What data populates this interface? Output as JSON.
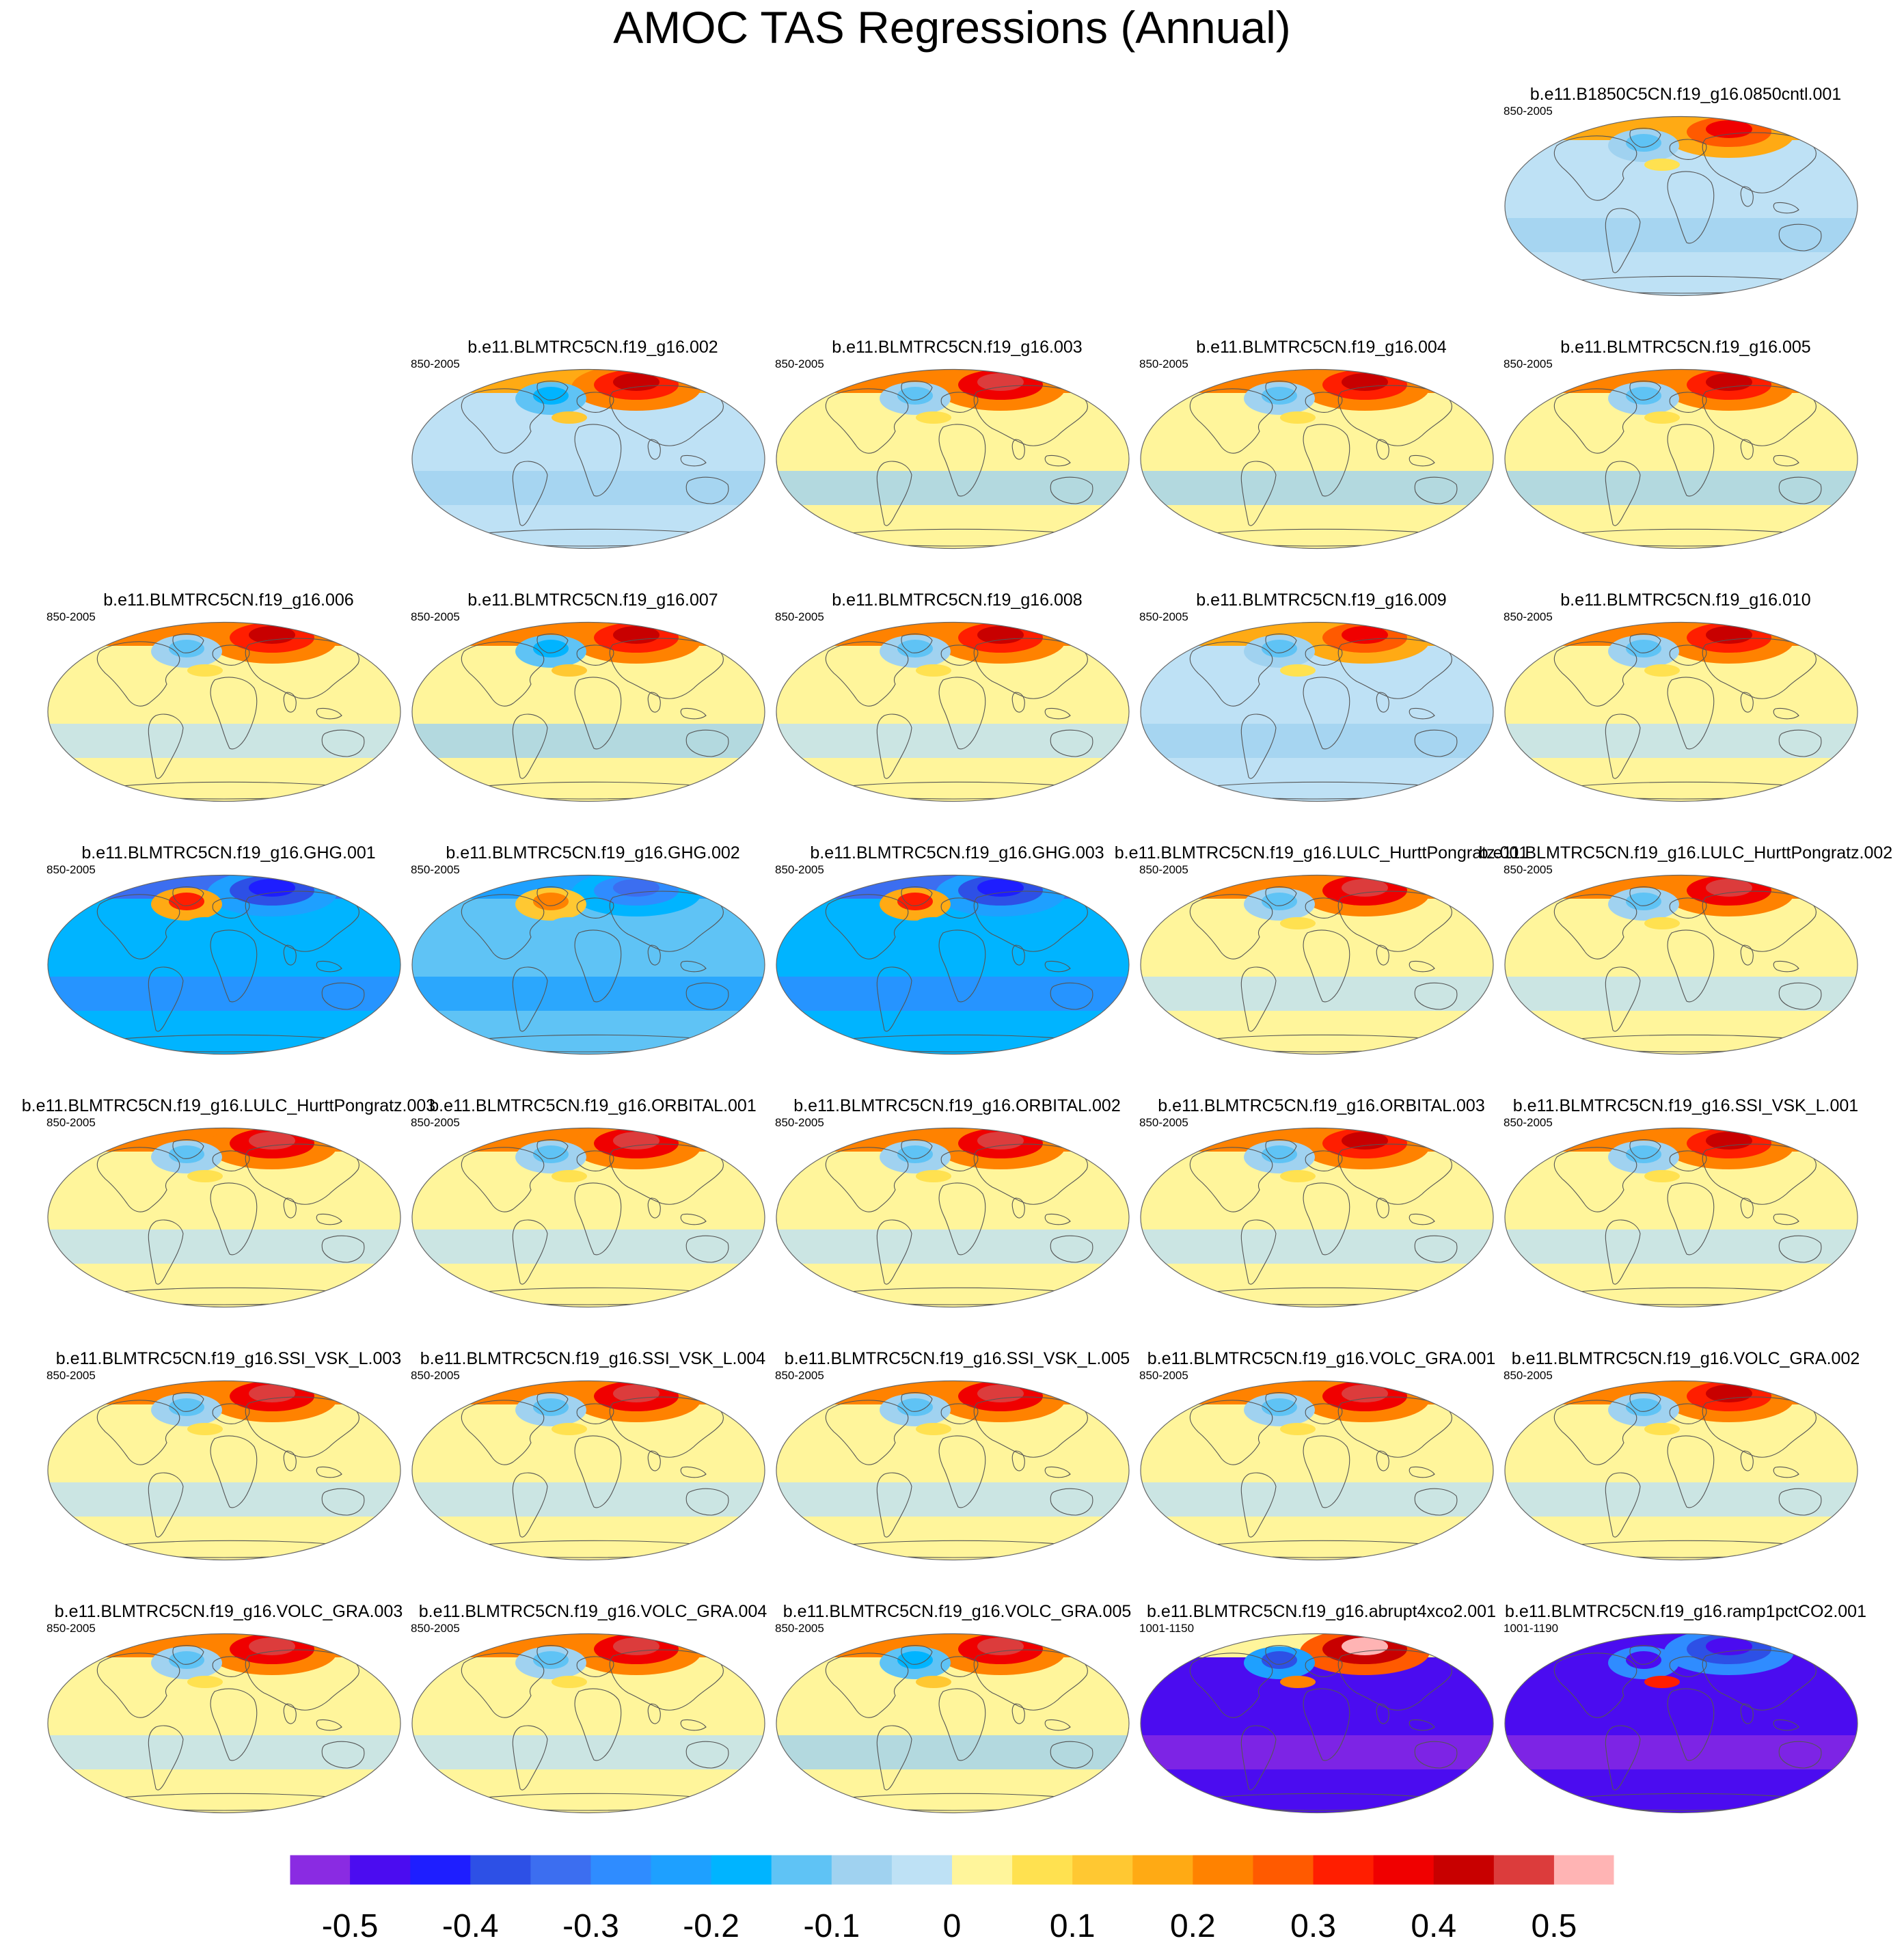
{
  "chart_data": {
    "type": "heatmap",
    "title": "AMOC TAS Regressions (Annual)",
    "projection": "global map (Robinson-like)",
    "colorbar": {
      "levels": [
        -0.5,
        -0.45,
        -0.4,
        -0.35,
        -0.3,
        -0.25,
        -0.2,
        -0.15,
        -0.1,
        -0.05,
        0,
        0.05,
        0.1,
        0.15,
        0.2,
        0.25,
        0.3,
        0.35,
        0.4,
        0.45,
        0.5
      ],
      "tick_labels": [
        "-0.5",
        "-0.4",
        "-0.3",
        "-0.2",
        "-0.1",
        "0",
        "0.1",
        "0.2",
        "0.3",
        "0.4",
        "0.5"
      ],
      "colors": [
        "#8a2be2",
        "#4b0cf0",
        "#1e1eff",
        "#2d50e6",
        "#3c6ef0",
        "#2f8cff",
        "#1ea0ff",
        "#00b4ff",
        "#5fc3f5",
        "#a0d2f0",
        "#bee1f5",
        "#fff59b",
        "#ffe150",
        "#ffc832",
        "#ffaa14",
        "#ff8200",
        "#ff5a00",
        "#ff1e00",
        "#f00000",
        "#c80000",
        "#dc3c3c",
        "#ffb4b4"
      ]
    },
    "panels": [
      {
        "title": "b.e11.B1850C5CN.f19_g16.0850cntl.001",
        "period": "850-2005",
        "mean_anomaly": -0.02,
        "arctic_anomaly": 0.35,
        "na_anomaly": -0.15
      },
      {
        "title": "b.e11.BLMTRC5CN.f19_g16.002",
        "period": "850-2005",
        "mean_anomaly": -0.02,
        "arctic_anomaly": 0.4,
        "na_anomaly": -0.2
      },
      {
        "title": "b.e11.BLMTRC5CN.f19_g16.003",
        "period": "850-2005",
        "mean_anomaly": 0.0,
        "arctic_anomaly": 0.45,
        "na_anomaly": -0.15
      },
      {
        "title": "b.e11.BLMTRC5CN.f19_g16.004",
        "period": "850-2005",
        "mean_anomaly": 0.0,
        "arctic_anomaly": 0.4,
        "na_anomaly": -0.15
      },
      {
        "title": "b.e11.BLMTRC5CN.f19_g16.005",
        "period": "850-2005",
        "mean_anomaly": 0.0,
        "arctic_anomaly": 0.4,
        "na_anomaly": -0.15
      },
      {
        "title": "b.e11.BLMTRC5CN.f19_g16.006",
        "period": "850-2005",
        "mean_anomaly": 0.02,
        "arctic_anomaly": 0.4,
        "na_anomaly": -0.15
      },
      {
        "title": "b.e11.BLMTRC5CN.f19_g16.007",
        "period": "850-2005",
        "mean_anomaly": 0.0,
        "arctic_anomaly": 0.4,
        "na_anomaly": -0.2
      },
      {
        "title": "b.e11.BLMTRC5CN.f19_g16.008",
        "period": "850-2005",
        "mean_anomaly": 0.02,
        "arctic_anomaly": 0.4,
        "na_anomaly": -0.15
      },
      {
        "title": "b.e11.BLMTRC5CN.f19_g16.009",
        "period": "850-2005",
        "mean_anomaly": -0.02,
        "arctic_anomaly": 0.35,
        "na_anomaly": -0.15
      },
      {
        "title": "b.e11.BLMTRC5CN.f19_g16.010",
        "period": "850-2005",
        "mean_anomaly": 0.02,
        "arctic_anomaly": 0.4,
        "na_anomaly": -0.15
      },
      {
        "title": "b.e11.BLMTRC5CN.f19_g16.GHG.001",
        "period": "850-2005",
        "mean_anomaly": -0.2,
        "arctic_anomaly": -0.45,
        "na_anomaly": 0.3
      },
      {
        "title": "b.e11.BLMTRC5CN.f19_g16.GHG.002",
        "period": "850-2005",
        "mean_anomaly": -0.15,
        "arctic_anomaly": -0.35,
        "na_anomaly": 0.2
      },
      {
        "title": "b.e11.BLMTRC5CN.f19_g16.GHG.003",
        "period": "850-2005",
        "mean_anomaly": -0.2,
        "arctic_anomaly": -0.45,
        "na_anomaly": 0.3
      },
      {
        "title": "b.e11.BLMTRC5CN.f19_g16.LULC_HurttPongratz.001",
        "period": "850-2005",
        "mean_anomaly": 0.02,
        "arctic_anomaly": 0.45,
        "na_anomaly": -0.15
      },
      {
        "title": "b.e11.BLMTRC5CN.f19_g16.LULC_HurttPongratz.002",
        "period": "850-2005",
        "mean_anomaly": 0.02,
        "arctic_anomaly": 0.45,
        "na_anomaly": -0.15
      },
      {
        "title": "b.e11.BLMTRC5CN.f19_g16.LULC_HurttPongratz.003",
        "period": "850-2005",
        "mean_anomaly": 0.02,
        "arctic_anomaly": 0.45,
        "na_anomaly": -0.15
      },
      {
        "title": "b.e11.BLMTRC5CN.f19_g16.ORBITAL.001",
        "period": "850-2005",
        "mean_anomaly": 0.02,
        "arctic_anomaly": 0.45,
        "na_anomaly": -0.15
      },
      {
        "title": "b.e11.BLMTRC5CN.f19_g16.ORBITAL.002",
        "period": "850-2005",
        "mean_anomaly": 0.02,
        "arctic_anomaly": 0.45,
        "na_anomaly": -0.15
      },
      {
        "title": "b.e11.BLMTRC5CN.f19_g16.ORBITAL.003",
        "period": "850-2005",
        "mean_anomaly": 0.02,
        "arctic_anomaly": 0.4,
        "na_anomaly": -0.15
      },
      {
        "title": "b.e11.BLMTRC5CN.f19_g16.SSI_VSK_L.001",
        "period": "850-2005",
        "mean_anomaly": 0.02,
        "arctic_anomaly": 0.4,
        "na_anomaly": -0.15
      },
      {
        "title": "b.e11.BLMTRC5CN.f19_g16.SSI_VSK_L.003",
        "period": "850-2005",
        "mean_anomaly": 0.02,
        "arctic_anomaly": 0.45,
        "na_anomaly": -0.15
      },
      {
        "title": "b.e11.BLMTRC5CN.f19_g16.SSI_VSK_L.004",
        "period": "850-2005",
        "mean_anomaly": 0.02,
        "arctic_anomaly": 0.45,
        "na_anomaly": -0.15
      },
      {
        "title": "b.e11.BLMTRC5CN.f19_g16.SSI_VSK_L.005",
        "period": "850-2005",
        "mean_anomaly": 0.02,
        "arctic_anomaly": 0.45,
        "na_anomaly": -0.15
      },
      {
        "title": "b.e11.BLMTRC5CN.f19_g16.VOLC_GRA.001",
        "period": "850-2005",
        "mean_anomaly": 0.02,
        "arctic_anomaly": 0.45,
        "na_anomaly": -0.15
      },
      {
        "title": "b.e11.BLMTRC5CN.f19_g16.VOLC_GRA.002",
        "period": "850-2005",
        "mean_anomaly": 0.02,
        "arctic_anomaly": 0.4,
        "na_anomaly": -0.15
      },
      {
        "title": "b.e11.BLMTRC5CN.f19_g16.VOLC_GRA.003",
        "period": "850-2005",
        "mean_anomaly": 0.02,
        "arctic_anomaly": 0.45,
        "na_anomaly": -0.15
      },
      {
        "title": "b.e11.BLMTRC5CN.f19_g16.VOLC_GRA.004",
        "period": "850-2005",
        "mean_anomaly": 0.02,
        "arctic_anomaly": 0.45,
        "na_anomaly": -0.15
      },
      {
        "title": "b.e11.BLMTRC5CN.f19_g16.VOLC_GRA.005",
        "period": "850-2005",
        "mean_anomaly": 0.0,
        "arctic_anomaly": 0.45,
        "na_anomaly": -0.2
      },
      {
        "title": "b.e11.BLMTRC5CN.f19_g16.abrupt4xco2.001",
        "period": "1001-1150",
        "mean_anomaly": -0.5,
        "arctic_anomaly": 0.5,
        "na_anomaly": -0.4
      },
      {
        "title": "b.e11.BLMTRC5CN.f19_g16.ramp1pctCO2.001",
        "period": "1001-1190",
        "mean_anomaly": -0.5,
        "arctic_anomaly": -0.5,
        "na_anomaly": -0.5
      }
    ]
  }
}
